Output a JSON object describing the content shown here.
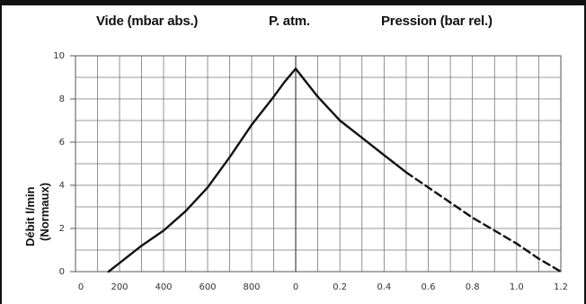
{
  "chart_data": {
    "type": "line",
    "header_labels": {
      "vacuum": "Vide (mbar abs.)",
      "atm": "P. atm.",
      "pressure": "Pression (bar rel.)"
    },
    "ylabel_line1": "Débit l/min",
    "ylabel_line2": "(Normaux)",
    "ylim": [
      0,
      10
    ],
    "y_ticks": [
      "0",
      "2",
      "4",
      "6",
      "8",
      "10"
    ],
    "vacuum_axis": {
      "unit": "mbar abs.",
      "range": [
        1000,
        0
      ],
      "ticks": [
        "0",
        "200",
        "400",
        "600",
        "800"
      ]
    },
    "pressure_axis": {
      "unit": "bar rel.",
      "range": [
        0,
        1.2
      ],
      "ticks": [
        "0",
        "0.2",
        "0.4",
        "0.6",
        "0.8",
        "1.0",
        "1.2"
      ]
    },
    "grid": true,
    "series": [
      {
        "style": "solid",
        "region": "vacuum",
        "x_mbar": [
          850,
          800,
          700,
          600,
          500,
          400,
          300,
          200,
          100,
          50,
          0
        ],
        "y": [
          0.0,
          0.4,
          1.2,
          1.9,
          2.8,
          3.9,
          5.3,
          6.8,
          8.1,
          8.8,
          9.4
        ]
      },
      {
        "style": "solid",
        "region": "pressure",
        "x_bar": [
          0.0,
          0.1,
          0.2,
          0.3,
          0.4,
          0.5
        ],
        "y": [
          9.4,
          8.1,
          7.0,
          6.2,
          5.4,
          4.6
        ]
      },
      {
        "style": "dashed",
        "region": "pressure",
        "x_bar": [
          0.5,
          0.6,
          0.7,
          0.8,
          0.9,
          1.0,
          1.1,
          1.2
        ],
        "y": [
          4.6,
          3.9,
          3.2,
          2.5,
          1.9,
          1.3,
          0.6,
          0.0
        ]
      }
    ]
  }
}
